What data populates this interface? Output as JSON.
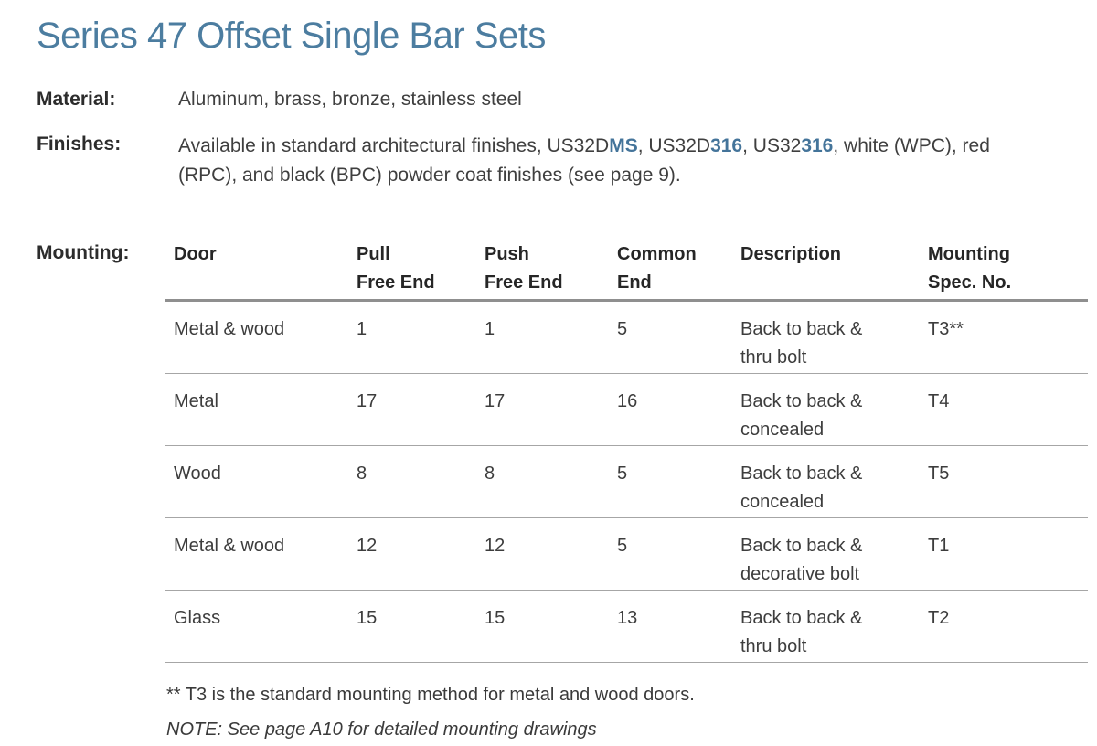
{
  "title": "Series 47 Offset Single Bar Sets",
  "material": {
    "label": "Material:",
    "value": "Aluminum, brass, bronze, stainless steel"
  },
  "finishes": {
    "label": "Finishes:",
    "segments": [
      {
        "text": "Available in standard architectural finishes, US32D",
        "style": "normal"
      },
      {
        "text": "MS",
        "style": "accent"
      },
      {
        "text": ", US32D",
        "style": "normal"
      },
      {
        "text": "316",
        "style": "accent"
      },
      {
        "text": ", US32",
        "style": "normal"
      },
      {
        "text": "316",
        "style": "accent"
      },
      {
        "text": ", white (WPC), red\n(RPC), and black (BPC) powder coat finishes (see page 9).",
        "style": "normal"
      }
    ]
  },
  "mounting": {
    "label": "Mounting:",
    "table": {
      "columns": [
        {
          "key": "door",
          "label": "Door"
        },
        {
          "key": "pull",
          "label": "Pull\nFree End"
        },
        {
          "key": "push",
          "label": "Push\nFree End"
        },
        {
          "key": "common",
          "label": "Common\nEnd"
        },
        {
          "key": "description",
          "label": "Description"
        },
        {
          "key": "spec",
          "label": "Mounting\nSpec. No."
        }
      ],
      "rows": [
        {
          "door": "Metal & wood",
          "pull": "1",
          "push": "1",
          "common": "5",
          "description": "Back to back &\nthru bolt",
          "spec": "T3**"
        },
        {
          "door": "Metal",
          "pull": "17",
          "push": "17",
          "common": "16",
          "description": "Back to back &\nconcealed",
          "spec": "T4"
        },
        {
          "door": "Wood",
          "pull": "8",
          "push": "8",
          "common": "5",
          "description": "Back to back &\nconcealed",
          "spec": "T5"
        },
        {
          "door": "Metal & wood",
          "pull": "12",
          "push": "12",
          "common": "5",
          "description": "Back to back &\ndecorative bolt",
          "spec": "T1"
        },
        {
          "door": "Glass",
          "pull": "15",
          "push": "15",
          "common": "13",
          "description": "Back to back &\nthru bolt",
          "spec": "T2"
        }
      ]
    },
    "footnotes": [
      {
        "text": "** T3 is the standard mounting method for metal and wood doors.",
        "style": "normal"
      },
      {
        "text": "NOTE: See page A10 for detailed mounting drawings",
        "style": "italic"
      }
    ]
  },
  "colors": {
    "title_blue": "#4c7da0",
    "accent_blue": "#44749a",
    "body_text": "#3f3f3f",
    "label_text": "#2c2c2c",
    "header_rule": "#8f8f8f",
    "row_rule": "#a6a6a6"
  }
}
